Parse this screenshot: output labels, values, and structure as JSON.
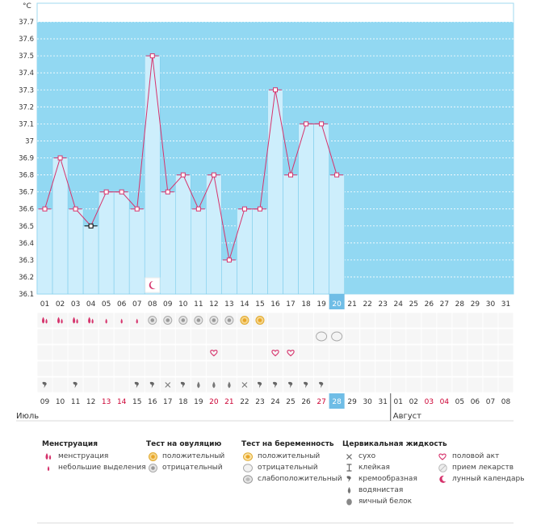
{
  "chart_data": {
    "type": "bar",
    "y_unit": "°C",
    "ylim": [
      36.1,
      37.7
    ],
    "yticks": [
      "36.1",
      "36.2",
      "36.3",
      "36.4",
      "36.5",
      "36.6",
      "36.7",
      "36.8",
      "36.9",
      "37",
      "37.1",
      "37.2",
      "37.3",
      "37.4",
      "37.5",
      "37.6",
      "37.7"
    ],
    "cycle_days": [
      "01",
      "02",
      "03",
      "04",
      "05",
      "06",
      "07",
      "08",
      "09",
      "10",
      "11",
      "12",
      "13",
      "14",
      "15",
      "16",
      "17",
      "18",
      "19",
      "20",
      "21",
      "22",
      "23",
      "24",
      "25",
      "26",
      "27",
      "28",
      "29",
      "30",
      "31"
    ],
    "current_day": "20",
    "temperatures": [
      36.6,
      36.9,
      36.6,
      36.5,
      36.7,
      36.7,
      36.6,
      37.5,
      36.7,
      36.8,
      36.6,
      36.8,
      36.3,
      36.6,
      36.6,
      37.3,
      36.8,
      37.1,
      37.1,
      36.8
    ],
    "highlight_point_index": 3,
    "calendar_dates": [
      "09",
      "10",
      "11",
      "12",
      "13",
      "14",
      "15",
      "16",
      "17",
      "18",
      "19",
      "20",
      "21",
      "22",
      "23",
      "24",
      "25",
      "26",
      "27",
      "28",
      "29",
      "30",
      "31",
      "01",
      "02",
      "03",
      "04",
      "05",
      "06",
      "07",
      "08"
    ],
    "weekend_date_indices": [
      4,
      5,
      11,
      12,
      18,
      25,
      26
    ],
    "months": [
      {
        "label": "Июль",
        "start_index": 0
      },
      {
        "label": "Август",
        "start_index": 23
      }
    ],
    "markers": {
      "menstruation": [
        "menstruation-icon",
        "menstruation-icon",
        "menstruation-icon",
        "menstruation-icon",
        "light-discharge-icon",
        "light-discharge-icon",
        "light-discharge-icon"
      ],
      "ovulation_tests": {
        "7": "ovulation-negative-icon",
        "8": "ovulation-negative-icon",
        "9": "ovulation-negative-icon",
        "10": "ovulation-negative-icon",
        "11": "ovulation-negative-icon",
        "12": "ovulation-negative-icon",
        "13": "ovulation-positive-icon",
        "14": "ovulation-positive-icon"
      },
      "pregnancy_tests": {
        "18": "pregnancy-negative-icon",
        "19": "pregnancy-negative-icon"
      },
      "intercourse": [
        11,
        15,
        16
      ],
      "moon_day_index": 7,
      "fluid": {
        "0": "creamy-icon",
        "2": "creamy-icon",
        "6": "creamy-icon",
        "7": "creamy-icon",
        "8": "dry-icon",
        "9": "creamy-icon",
        "10": "watery-icon",
        "11": "watery-icon",
        "12": "watery-icon",
        "13": "dry-icon",
        "14": "creamy-icon",
        "15": "creamy-icon",
        "16": "creamy-icon",
        "17": "creamy-icon",
        "18": "creamy-icon"
      }
    },
    "colors": {
      "plot_bg": "#92d8f2",
      "bar": "#cdeefc",
      "bar_edge": "#7ecdec",
      "line": "#d6336c",
      "point_fill": "#ffffff",
      "highlight_point": "#000000",
      "current_day_bg": "#6fbde6",
      "weekend_text": "#cc0033",
      "grid": "#ffffff"
    }
  },
  "legend": {
    "menstruation": {
      "title": "Менструация",
      "items": [
        {
          "icon": "menstruation-icon",
          "label": "менструация"
        },
        {
          "icon": "light-discharge-icon",
          "label": "небольшие выделения"
        }
      ]
    },
    "ovulation": {
      "title": "Тест на овуляцию",
      "items": [
        {
          "icon": "ovulation-positive-icon",
          "label": "положительный"
        },
        {
          "icon": "ovulation-negative-icon",
          "label": "отрицательный"
        }
      ]
    },
    "pregnancy": {
      "title": "Тест на беременность",
      "items": [
        {
          "icon": "pregnancy-positive-icon",
          "label": "положительный"
        },
        {
          "icon": "pregnancy-negative-icon",
          "label": "отрицательный"
        },
        {
          "icon": "pregnancy-weak-icon",
          "label": "слабоположительный"
        }
      ]
    },
    "fluid": {
      "title": "Цервикальная жидкость",
      "items": [
        {
          "icon": "dry-icon",
          "label": "сухо"
        },
        {
          "icon": "sticky-icon",
          "label": "клейкая"
        },
        {
          "icon": "creamy-icon",
          "label": "кремообразная"
        },
        {
          "icon": "watery-icon",
          "label": "водянистая"
        },
        {
          "icon": "egg-white-icon",
          "label": "яичный белок"
        }
      ]
    },
    "other": {
      "items": [
        {
          "icon": "heart-icon",
          "label": "половой акт"
        },
        {
          "icon": "pill-icon",
          "label": "прием лекарств"
        },
        {
          "icon": "moon-icon",
          "label": "лунный календарь"
        }
      ]
    }
  }
}
